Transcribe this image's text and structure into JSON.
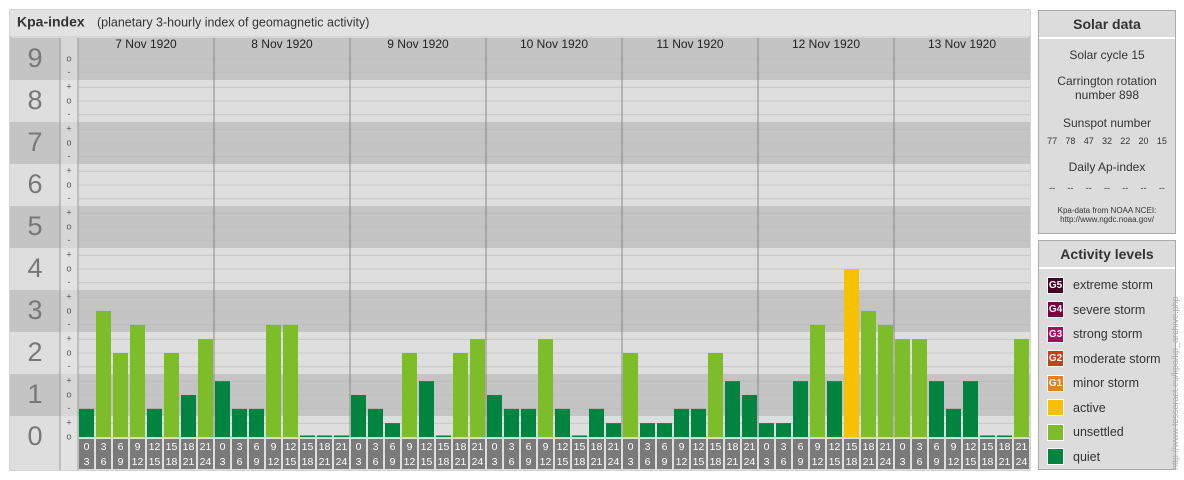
{
  "chart_data": {
    "type": "bar",
    "title": "Kpa-index",
    "subtitle": "(planetary 3-hourly index of geomagnetic activity)",
    "ylim": [
      0,
      9.5
    ],
    "yticks": [
      0,
      1,
      2,
      3,
      4,
      5,
      6,
      7,
      8,
      9
    ],
    "minor_yticks": [
      {
        "value": 0,
        "label": "o"
      },
      {
        "value": 0.33,
        "label": "+"
      },
      {
        "value": 0.67,
        "label": "-"
      },
      {
        "value": 1,
        "label": "o"
      },
      {
        "value": 1.33,
        "label": "+"
      },
      {
        "value": 1.67,
        "label": "-"
      },
      {
        "value": 2,
        "label": "o"
      },
      {
        "value": 2.33,
        "label": "+"
      },
      {
        "value": 2.67,
        "label": "-"
      },
      {
        "value": 3,
        "label": "o"
      },
      {
        "value": 3.33,
        "label": "+"
      },
      {
        "value": 3.67,
        "label": "-"
      },
      {
        "value": 4,
        "label": "o"
      },
      {
        "value": 4.33,
        "label": "+"
      },
      {
        "value": 4.67,
        "label": "-"
      },
      {
        "value": 5,
        "label": "o"
      },
      {
        "value": 5.33,
        "label": "+"
      },
      {
        "value": 5.67,
        "label": "-"
      },
      {
        "value": 6,
        "label": "o"
      },
      {
        "value": 6.33,
        "label": "+"
      },
      {
        "value": 6.67,
        "label": "-"
      },
      {
        "value": 7,
        "label": "o"
      },
      {
        "value": 7.33,
        "label": "+"
      },
      {
        "value": 7.67,
        "label": "-"
      },
      {
        "value": 8,
        "label": "o"
      },
      {
        "value": 8.33,
        "label": "+"
      },
      {
        "value": 8.67,
        "label": "-"
      },
      {
        "value": 9,
        "label": "o"
      }
    ],
    "grid": true,
    "slots": [
      {
        "from": "0",
        "to": "3"
      },
      {
        "from": "3",
        "to": "6"
      },
      {
        "from": "6",
        "to": "9"
      },
      {
        "from": "9",
        "to": "12"
      },
      {
        "from": "12",
        "to": "15"
      },
      {
        "from": "15",
        "to": "18"
      },
      {
        "from": "18",
        "to": "21"
      },
      {
        "from": "21",
        "to": "24"
      }
    ],
    "days": [
      {
        "date": "7 Nov 1920",
        "values": [
          0.67,
          3,
          2,
          2.67,
          0.67,
          2,
          1,
          2.33
        ],
        "colors": [
          "#00843f",
          "#7dbd2a",
          "#7dbd2a",
          "#7dbd2a",
          "#00843f",
          "#7dbd2a",
          "#00843f",
          "#7dbd2a"
        ]
      },
      {
        "date": "8 Nov 1920",
        "values": [
          1.33,
          0.67,
          0.67,
          2.67,
          2.67,
          0,
          0,
          0
        ],
        "colors": [
          "#00843f",
          "#00843f",
          "#00843f",
          "#7dbd2a",
          "#7dbd2a",
          "#00843f",
          "#00843f",
          "#00843f"
        ]
      },
      {
        "date": "9 Nov 1920",
        "values": [
          1,
          0.67,
          0.33,
          2,
          1.33,
          0,
          2,
          2.33
        ],
        "colors": [
          "#00843f",
          "#00843f",
          "#00843f",
          "#7dbd2a",
          "#00843f",
          "#00843f",
          "#7dbd2a",
          "#7dbd2a"
        ]
      },
      {
        "date": "10 Nov 1920",
        "values": [
          1,
          0.67,
          0.67,
          2.33,
          0.67,
          0,
          0.67,
          0.33
        ],
        "colors": [
          "#00843f",
          "#00843f",
          "#00843f",
          "#7dbd2a",
          "#00843f",
          "#00843f",
          "#00843f",
          "#00843f"
        ]
      },
      {
        "date": "11 Nov 1920",
        "values": [
          2,
          0.33,
          0.33,
          0.67,
          0.67,
          2,
          1.33,
          1
        ],
        "colors": [
          "#7dbd2a",
          "#00843f",
          "#00843f",
          "#00843f",
          "#00843f",
          "#7dbd2a",
          "#00843f",
          "#00843f"
        ]
      },
      {
        "date": "12 Nov 1920",
        "values": [
          0.33,
          0.33,
          1.33,
          2.67,
          1.33,
          4,
          3,
          2.67
        ],
        "colors": [
          "#00843f",
          "#00843f",
          "#00843f",
          "#7dbd2a",
          "#00843f",
          "#f7c100",
          "#7dbd2a",
          "#7dbd2a"
        ]
      },
      {
        "date": "13 Nov 1920",
        "values": [
          2.33,
          2.33,
          1.33,
          0.67,
          1.33,
          0,
          0,
          2.33
        ],
        "colors": [
          "#7dbd2a",
          "#7dbd2a",
          "#00843f",
          "#00843f",
          "#00843f",
          "#00843f",
          "#00843f",
          "#7dbd2a"
        ]
      }
    ]
  },
  "solar_data": {
    "title": "Solar data",
    "cycle": "Solar cycle 15",
    "carrington": "Carrington rotation number 898",
    "sunspot_label": "Sunspot number",
    "sunspot_values": [
      77,
      78,
      47,
      32,
      22,
      20,
      15
    ],
    "ap_label": "Daily Ap-index",
    "ap_values": [
      "--",
      "--",
      "--",
      "--",
      "--",
      "--",
      "--"
    ],
    "source": "Kpa-data from NOAA NCEI:",
    "source_url": "http://www.ngdc.noaa.gov/"
  },
  "activity_levels": {
    "title": "Activity levels",
    "levels": [
      {
        "badge": "G5",
        "label": "extreme storm",
        "color": "#4a0024"
      },
      {
        "badge": "G4",
        "label": "severe storm",
        "color": "#7a0042"
      },
      {
        "badge": "G3",
        "label": "strong storm",
        "color": "#b4005c"
      },
      {
        "badge": "G2",
        "label": "moderate storm",
        "color": "#d2381c"
      },
      {
        "badge": "G1",
        "label": "minor storm",
        "color": "#e8801e"
      },
      {
        "badge": "",
        "label": "active",
        "color": "#f7c100"
      },
      {
        "badge": "",
        "label": "unsettled",
        "color": "#7dbd2a"
      },
      {
        "badge": "",
        "label": "quiet",
        "color": "#00843f"
      }
    ]
  },
  "credit": "http://www.tesseract.eu/kpa/kp_archive.php"
}
